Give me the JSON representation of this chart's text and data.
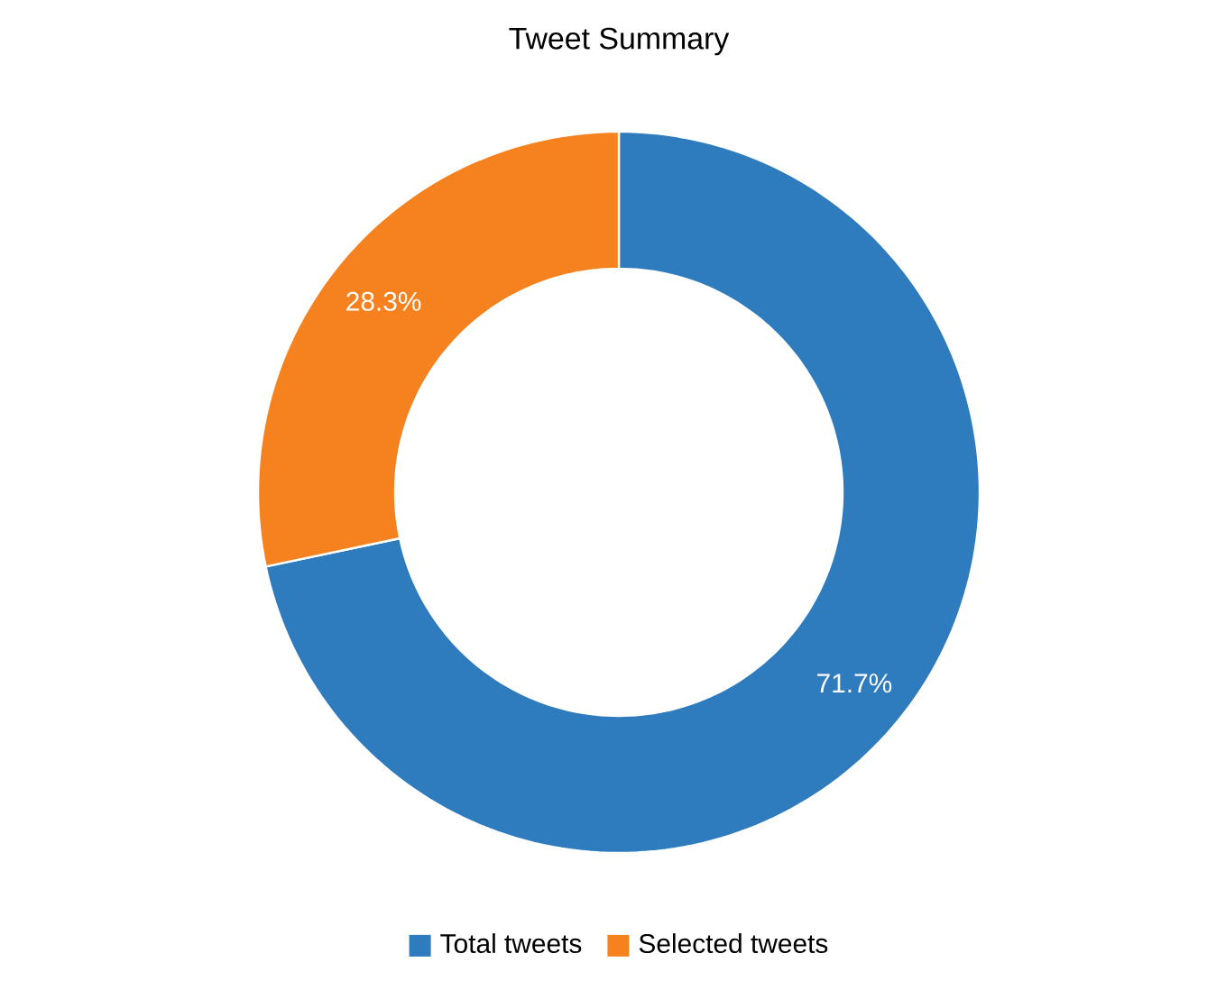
{
  "chart_data": {
    "type": "donut",
    "title": "Tweet Summary",
    "categories": [
      "Total tweets",
      "Selected tweets"
    ],
    "values": [
      71.7,
      28.3
    ],
    "colors": [
      "#2e7bbd",
      "#f5821f"
    ],
    "value_labels": [
      "71.7%",
      "28.3%"
    ],
    "legend": "bottom"
  }
}
